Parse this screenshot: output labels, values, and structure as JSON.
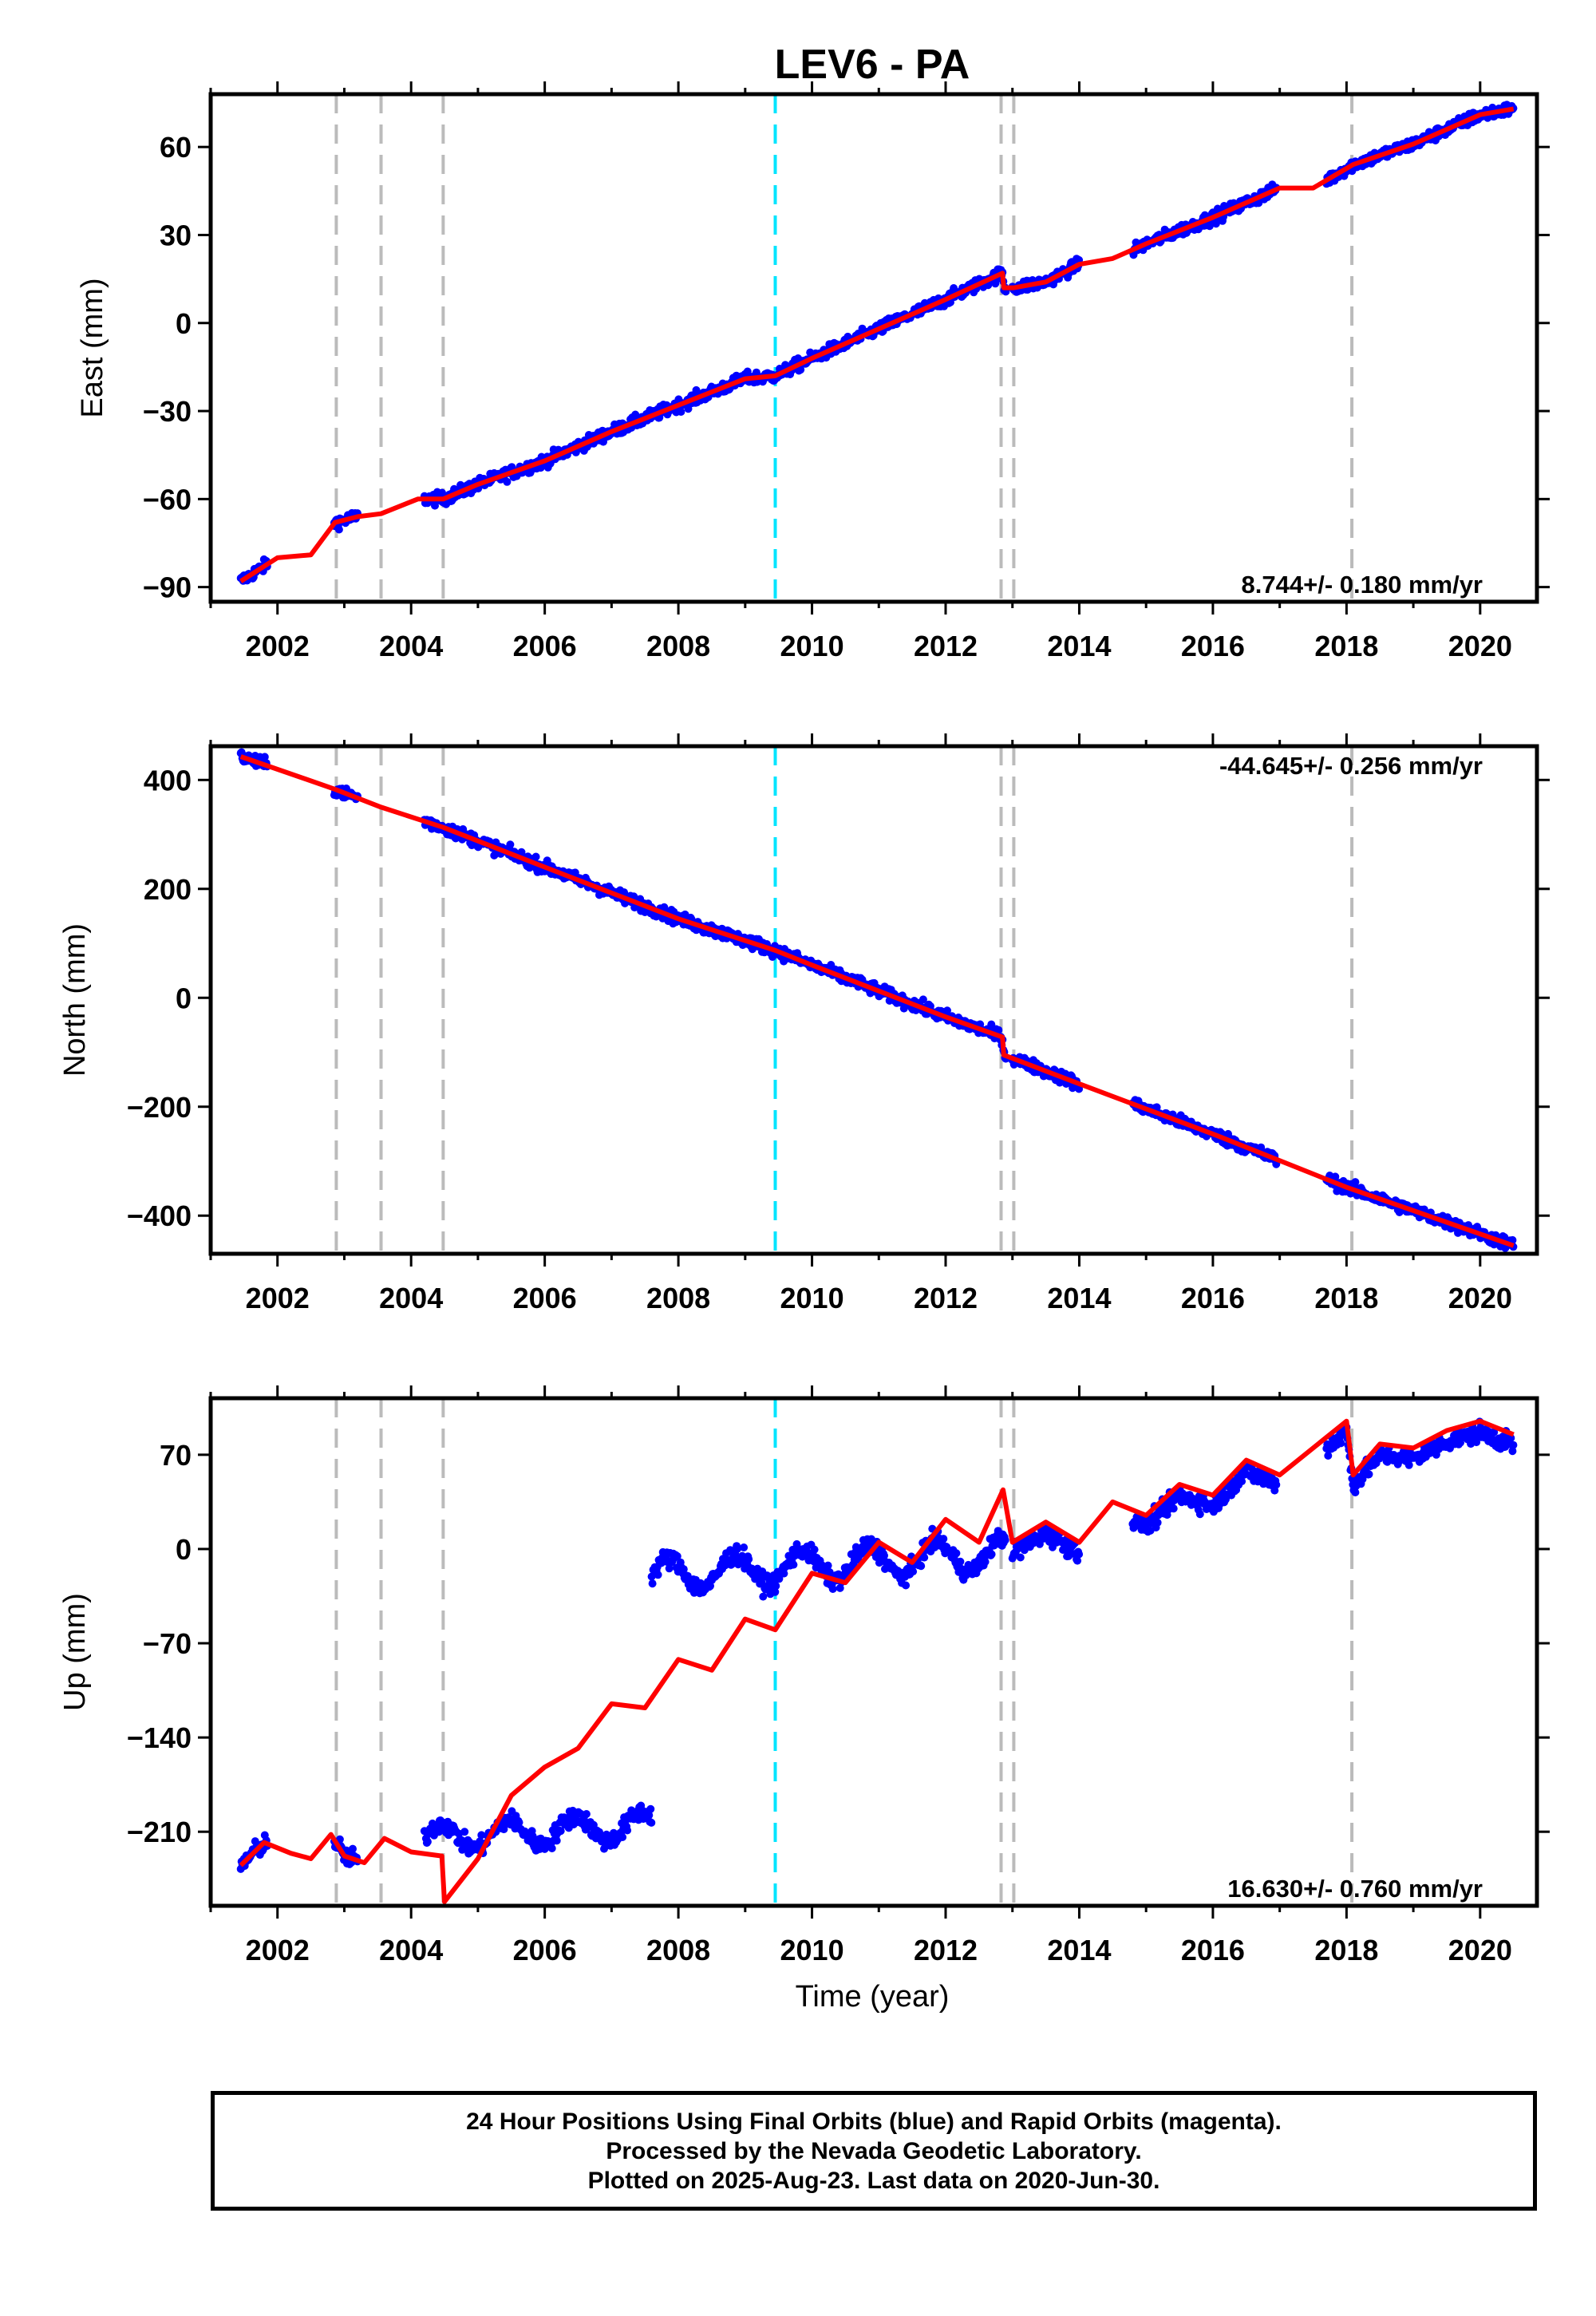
{
  "title": "LEV6 - PA",
  "xlabel": "Time (year)",
  "footer": {
    "line1": "24 Hour Positions Using Final Orbits (blue) and Rapid Orbits (magenta).",
    "line2": "Processed by the Nevada Geodetic Laboratory.",
    "line3": "Plotted on 2025-Aug-23. Last data on 2020-Jun-30."
  },
  "colors": {
    "final_orbits": "#0000ff",
    "model": "#ff0000",
    "equipment_change": "#bbbbbb",
    "earthquake": "#00e5ff"
  },
  "chart_data": [
    {
      "type": "scatter",
      "component": "east",
      "ylabel": "East (mm)",
      "rate_text": "8.744+/- 0.180 mm/yr",
      "xlim": [
        2001.0,
        2020.85
      ],
      "ylim": [
        -95,
        78
      ],
      "xticks": [
        2002,
        2004,
        2006,
        2008,
        2010,
        2012,
        2014,
        2016,
        2018,
        2020
      ],
      "yticks": [
        -90,
        -60,
        -30,
        0,
        30,
        60
      ],
      "ytick_labels": [
        "−90",
        "−60",
        "−30",
        "0",
        "30",
        "60"
      ],
      "data_segments": [
        [
          2001.45,
          2001.85
        ],
        [
          2002.85,
          2003.2
        ],
        [
          2004.2,
          2012.9
        ],
        [
          2013.0,
          2014.0
        ],
        [
          2014.8,
          2016.95
        ],
        [
          2017.7,
          2020.5
        ]
      ],
      "model": {
        "x": [
          2001.45,
          2002.0,
          2002.5,
          2002.86,
          2003.2,
          2003.55,
          2004.1,
          2004.48,
          2005.0,
          2006.0,
          2007.0,
          2008.0,
          2009.0,
          2009.45,
          2010.0,
          2011.0,
          2012.0,
          2012.85,
          2012.87,
          2013.02,
          2013.5,
          2014.0,
          2014.5,
          2015.0,
          2016.0,
          2017.0,
          2017.5,
          2018.1,
          2019.0,
          2020.0,
          2020.5
        ],
        "y": [
          -88,
          -80,
          -79,
          -68,
          -66,
          -65,
          -60,
          -60,
          -55,
          -47,
          -37,
          -28,
          -19,
          -18,
          -12,
          -2,
          8,
          17,
          12,
          12,
          14,
          20,
          22,
          27,
          36,
          46,
          46,
          54,
          61,
          71,
          73
        ]
      },
      "vlines": [
        {
          "x": 2002.88,
          "kind": "equipment_change"
        },
        {
          "x": 2003.55,
          "kind": "equipment_change"
        },
        {
          "x": 2004.48,
          "kind": "equipment_change"
        },
        {
          "x": 2009.45,
          "kind": "earthquake"
        },
        {
          "x": 2012.83,
          "kind": "equipment_change"
        },
        {
          "x": 2013.02,
          "kind": "equipment_change"
        },
        {
          "x": 2018.08,
          "kind": "equipment_change"
        }
      ]
    },
    {
      "type": "scatter",
      "component": "north",
      "ylabel": "North (mm)",
      "rate_text": "-44.645+/- 0.256 mm/yr",
      "xlim": [
        2001.0,
        2020.85
      ],
      "ylim": [
        -470,
        462
      ],
      "xticks": [
        2002,
        2004,
        2006,
        2008,
        2010,
        2012,
        2014,
        2016,
        2018,
        2020
      ],
      "yticks": [
        -400,
        -200,
        0,
        200,
        400
      ],
      "ytick_labels": [
        "−400",
        "−200",
        "0",
        "200",
        "400"
      ],
      "data_segments": [
        [
          2001.45,
          2001.85
        ],
        [
          2002.85,
          2003.2
        ],
        [
          2004.2,
          2012.9
        ],
        [
          2013.0,
          2014.0
        ],
        [
          2014.8,
          2016.95
        ],
        [
          2017.7,
          2020.5
        ]
      ],
      "model": {
        "x": [
          2001.45,
          2002.86,
          2003.55,
          2004.48,
          2006.0,
          2008.0,
          2009.45,
          2010.0,
          2012.0,
          2012.85,
          2012.87,
          2014.0,
          2016.0,
          2018.0,
          2020.5
        ],
        "y": [
          443,
          383,
          350,
          313,
          240,
          145,
          87,
          60,
          -35,
          -72,
          -105,
          -158,
          -250,
          -348,
          -455
        ]
      },
      "vlines": [
        {
          "x": 2002.88,
          "kind": "equipment_change"
        },
        {
          "x": 2003.55,
          "kind": "equipment_change"
        },
        {
          "x": 2004.48,
          "kind": "equipment_change"
        },
        {
          "x": 2009.45,
          "kind": "earthquake"
        },
        {
          "x": 2012.83,
          "kind": "equipment_change"
        },
        {
          "x": 2013.02,
          "kind": "equipment_change"
        },
        {
          "x": 2018.08,
          "kind": "equipment_change"
        }
      ]
    },
    {
      "type": "scatter",
      "component": "up",
      "ylabel": "Up (mm)",
      "rate_text": "16.630+/- 0.760 mm/yr",
      "xlim": [
        2001.0,
        2020.85
      ],
      "ylim": [
        -265,
        112
      ],
      "xticks": [
        2002,
        2004,
        2006,
        2008,
        2010,
        2012,
        2014,
        2016,
        2018,
        2020
      ],
      "yticks": [
        -210,
        -140,
        -70,
        0,
        70
      ],
      "ytick_labels": [
        "−210",
        "−140",
        "−70",
        "0",
        "70"
      ],
      "data_segments": [
        [
          2001.45,
          2001.85
        ],
        [
          2002.85,
          2003.2
        ],
        [
          2004.2,
          2007.6
        ],
        [
          2007.6,
          2012.9
        ],
        [
          2013.0,
          2014.0
        ],
        [
          2014.8,
          2016.95
        ],
        [
          2017.7,
          2020.5
        ]
      ],
      "model": {
        "x": [
          2001.45,
          2001.8,
          2002.2,
          2002.5,
          2002.8,
          2003.0,
          2003.3,
          2003.6,
          2004.0,
          2004.46,
          2004.5,
          2005.0,
          2005.5,
          2006.0,
          2006.5,
          2007.0,
          2007.5,
          2008.0,
          2008.5,
          2009.0,
          2009.45,
          2010.0,
          2010.5,
          2011.0,
          2011.5,
          2012.0,
          2012.5,
          2012.86,
          2013.0,
          2013.5,
          2014.0,
          2014.5,
          2015.0,
          2015.5,
          2016.0,
          2016.5,
          2017.0,
          2017.5,
          2018.0,
          2018.1,
          2018.5,
          2019.0,
          2019.5,
          2020.0,
          2020.5
        ],
        "y": [
          -235,
          -218,
          -226,
          -230,
          -212,
          -228,
          -233,
          -215,
          -225,
          -228,
          -262,
          -230,
          -183,
          -162,
          -148,
          -115,
          -118,
          -82,
          -90,
          -52,
          -60,
          -18,
          -25,
          5,
          -10,
          22,
          5,
          44,
          5,
          20,
          5,
          35,
          25,
          48,
          40,
          66,
          55,
          75,
          95,
          55,
          78,
          75,
          88,
          95,
          85
        ]
      },
      "vlines": [
        {
          "x": 2002.88,
          "kind": "equipment_change"
        },
        {
          "x": 2003.55,
          "kind": "equipment_change"
        },
        {
          "x": 2004.48,
          "kind": "equipment_change"
        },
        {
          "x": 2009.45,
          "kind": "earthquake"
        },
        {
          "x": 2012.83,
          "kind": "equipment_change"
        },
        {
          "x": 2013.02,
          "kind": "equipment_change"
        },
        {
          "x": 2018.08,
          "kind": "equipment_change"
        }
      ]
    }
  ]
}
